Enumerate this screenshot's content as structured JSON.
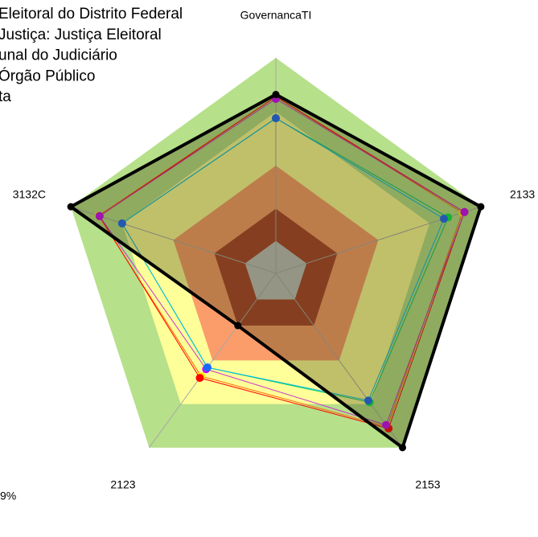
{
  "chart_data": {
    "type": "radar",
    "categories": [
      "GovernancaTI",
      "2133",
      "2153",
      "2123",
      "3132C"
    ],
    "rlim": [
      0,
      100
    ],
    "bands": [
      {
        "from": 75,
        "to": 100,
        "color": "#b6e08a"
      },
      {
        "from": 50,
        "to": 75,
        "color": "#ffff99"
      },
      {
        "from": 30,
        "to": 50,
        "color": "#fb9c6b"
      },
      {
        "from": 15,
        "to": 30,
        "color": "#a8412b"
      },
      {
        "from": 0,
        "to": 15,
        "color": "#c0c0c0"
      }
    ],
    "series": [
      {
        "name": "ta",
        "color": "#000000",
        "line_color": "#000000",
        "fill": "rgba(60,60,10,0.32)",
        "values": [
          83,
          100,
          100,
          30,
          100
        ]
      },
      {
        "color": "#ffee00",
        "line_color": "#ff6600",
        "values": [
          82,
          91,
          88,
          59,
          86.5
        ]
      },
      {
        "name": "Eleitoral do Distrito Federal",
        "color": "#ff0000",
        "line_color": "#ff0000",
        "values": [
          82,
          92,
          89,
          60,
          86
        ]
      },
      {
        "name": "Justiça: Justiça Eleitoral",
        "color": "#cc00ff",
        "line_color": "#cc33cc",
        "values": [
          81,
          92,
          87,
          55,
          86
        ]
      },
      {
        "name": "unal do Judiciário",
        "color": "#00ee44",
        "line_color": "#00cc66",
        "values": [
          72,
          84,
          74,
          54,
          75
        ]
      },
      {
        "name": "Órgão Público",
        "color": "#1a66ff",
        "line_color": "#00bbee",
        "values": [
          72,
          82,
          73,
          54,
          75
        ]
      }
    ],
    "annotation": "9%"
  }
}
